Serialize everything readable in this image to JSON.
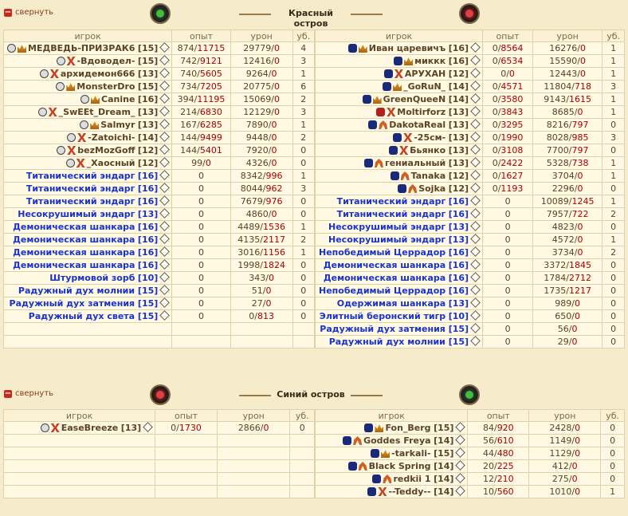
{
  "red": {
    "collapse_label": "свернуть",
    "title": "Красный остров",
    "headers": {
      "player": "игрок",
      "exp": "опыт",
      "dmg": "урон",
      "kills": "уб."
    },
    "left": [
      {
        "name": "МЕДВЕДЬ-ПРИЗРАК6",
        "lvl": "[15]",
        "exp_a": "874",
        "exp_b": "11715",
        "dmg_a": "29779",
        "dmg_b": "0",
        "kills": "4",
        "align": "g",
        "cls": "crown",
        "bot": false
      },
      {
        "name": "-Вдоводел-",
        "lvl": "[15]",
        "exp_a": "742",
        "exp_b": "9121",
        "dmg_a": "12416",
        "dmg_b": "0",
        "kills": "3",
        "align": "g",
        "cls": "x",
        "bot": false
      },
      {
        "name": "архидемон666",
        "lvl": "[13]",
        "exp_a": "740",
        "exp_b": "5605",
        "dmg_a": "9264",
        "dmg_b": "0",
        "kills": "1",
        "align": "g",
        "cls": "x",
        "bot": false
      },
      {
        "name": "MonsterDro",
        "lvl": "[15]",
        "exp_a": "734",
        "exp_b": "7205",
        "dmg_a": "20775",
        "dmg_b": "0",
        "kills": "6",
        "align": "g",
        "cls": "crown",
        "bot": false
      },
      {
        "name": "Canine",
        "lvl": "[16]",
        "exp_a": "394",
        "exp_b": "11195",
        "dmg_a": "15069",
        "dmg_b": "0",
        "kills": "2",
        "align": "g",
        "cls": "crown",
        "bot": false
      },
      {
        "name": "_SwEEt_Dream_",
        "lvl": "[13]",
        "exp_a": "214",
        "exp_b": "6830",
        "dmg_a": "12129",
        "dmg_b": "0",
        "kills": "3",
        "align": "g",
        "cls": "x",
        "bot": false
      },
      {
        "name": "Salmyr",
        "lvl": "[13]",
        "exp_a": "167",
        "exp_b": "6285",
        "dmg_a": "7890",
        "dmg_b": "0",
        "kills": "1",
        "align": "g",
        "cls": "crown",
        "bot": false
      },
      {
        "name": "-Zatoichi-",
        "lvl": "[14]",
        "exp_a": "144",
        "exp_b": "9499",
        "dmg_a": "9448",
        "dmg_b": "0",
        "kills": "2",
        "align": "g",
        "cls": "x",
        "bot": false
      },
      {
        "name": "bezMozGoff",
        "lvl": "[12]",
        "exp_a": "144",
        "exp_b": "5401",
        "dmg_a": "7920",
        "dmg_b": "0",
        "kills": "0",
        "align": "g",
        "cls": "x",
        "bot": false
      },
      {
        "name": "_Хаосный",
        "lvl": "[12]",
        "exp_a": "99",
        "exp_b": "0",
        "dmg_a": "4326",
        "dmg_b": "0",
        "kills": "0",
        "align": "g",
        "cls": "x",
        "bot": false
      },
      {
        "name": "Титанический эндарг",
        "lvl": "[16]",
        "exp_a": "0",
        "exp_b": "",
        "dmg_a": "8342",
        "dmg_b": "996",
        "kills": "1",
        "bot": true
      },
      {
        "name": "Титанический эндарг",
        "lvl": "[16]",
        "exp_a": "0",
        "exp_b": "",
        "dmg_a": "8044",
        "dmg_b": "962",
        "kills": "3",
        "bot": true
      },
      {
        "name": "Титанический эндарг",
        "lvl": "[16]",
        "exp_a": "0",
        "exp_b": "",
        "dmg_a": "7679",
        "dmg_b": "976",
        "kills": "0",
        "bot": true
      },
      {
        "name": "Несокрушимый эндарг",
        "lvl": "[13]",
        "exp_a": "0",
        "exp_b": "",
        "dmg_a": "4860",
        "dmg_b": "0",
        "kills": "0",
        "bot": true
      },
      {
        "name": "Демоническая шанкара",
        "lvl": "[16]",
        "exp_a": "0",
        "exp_b": "",
        "dmg_a": "4489",
        "dmg_b": "1536",
        "kills": "1",
        "bot": true
      },
      {
        "name": "Демоническая шанкара",
        "lvl": "[16]",
        "exp_a": "0",
        "exp_b": "",
        "dmg_a": "4135",
        "dmg_b": "2117",
        "kills": "2",
        "bot": true
      },
      {
        "name": "Демоническая шанкара",
        "lvl": "[16]",
        "exp_a": "0",
        "exp_b": "",
        "dmg_a": "3016",
        "dmg_b": "1156",
        "kills": "1",
        "bot": true
      },
      {
        "name": "Демоническая шанкара",
        "lvl": "[16]",
        "exp_a": "0",
        "exp_b": "",
        "dmg_a": "1998",
        "dmg_b": "1824",
        "kills": "0",
        "bot": true
      },
      {
        "name": "Штурмовой зорб",
        "lvl": "[10]",
        "exp_a": "0",
        "exp_b": "",
        "dmg_a": "343",
        "dmg_b": "0",
        "kills": "0",
        "bot": true
      },
      {
        "name": "Радужный дух молнии ",
        "lvl": "[15]",
        "exp_a": "0",
        "exp_b": "",
        "dmg_a": "51",
        "dmg_b": "0",
        "kills": "0",
        "bot": true
      },
      {
        "name": "Радужный дух затмения ",
        "lvl": "[15]",
        "exp_a": "0",
        "exp_b": "",
        "dmg_a": "27",
        "dmg_b": "0",
        "kills": "0",
        "bot": true
      },
      {
        "name": "Радужный дух света ",
        "lvl": "[15]",
        "exp_a": "0",
        "exp_b": "",
        "dmg_a": "0",
        "dmg_b": "813",
        "kills": "0",
        "bot": true
      }
    ],
    "right": [
      {
        "name": "Иван царевичъ",
        "lvl": "[16]",
        "exp_a": "0",
        "exp_b": "8564",
        "dmg_a": "16276",
        "dmg_b": "0",
        "kills": "1",
        "align": "b",
        "cls": "crown",
        "bot": false
      },
      {
        "name": "миккк",
        "lvl": "[16]",
        "exp_a": "0",
        "exp_b": "6534",
        "dmg_a": "15590",
        "dmg_b": "0",
        "kills": "1",
        "align": "b",
        "cls": "crown",
        "bot": false
      },
      {
        "name": "АРУХАН",
        "lvl": "[12]",
        "exp_a": "0",
        "exp_b": "0",
        "dmg_a": "12443",
        "dmg_b": "0",
        "kills": "1",
        "align": "b",
        "cls": "x",
        "bot": false
      },
      {
        "name": "_GoRuN_",
        "lvl": "[14]",
        "exp_a": "0",
        "exp_b": "4571",
        "dmg_a": "11804",
        "dmg_b": "718",
        "kills": "3",
        "align": "b",
        "cls": "crown",
        "bot": false
      },
      {
        "name": "GreenQueeN",
        "lvl": "[14]",
        "exp_a": "0",
        "exp_b": "3580",
        "dmg_a": "9143",
        "dmg_b": "1615",
        "kills": "1",
        "align": "b",
        "cls": "crown",
        "bot": false
      },
      {
        "name": "Moltirforz",
        "lvl": "[13]",
        "exp_a": "0",
        "exp_b": "3843",
        "dmg_a": "8685",
        "dmg_b": "0",
        "kills": "1",
        "align": "r",
        "cls": "x",
        "bot": false
      },
      {
        "name": "DakotaReal",
        "lvl": "[13]",
        "exp_a": "0",
        "exp_b": "3295",
        "dmg_a": "8216",
        "dmg_b": "797",
        "kills": "0",
        "align": "b",
        "cls": "arc",
        "bot": false
      },
      {
        "name": "-25см-",
        "lvl": "[13]",
        "exp_a": "0",
        "exp_b": "1990",
        "dmg_a": "8028",
        "dmg_b": "985",
        "kills": "3",
        "align": "b",
        "cls": "x",
        "bot": false
      },
      {
        "name": "Бьянко",
        "lvl": "[13]",
        "exp_a": "0",
        "exp_b": "3108",
        "dmg_a": "7700",
        "dmg_b": "797",
        "kills": "0",
        "align": "b",
        "cls": "x",
        "bot": false
      },
      {
        "name": "гениальный",
        "lvl": "[13]",
        "exp_a": "0",
        "exp_b": "2422",
        "dmg_a": "5328",
        "dmg_b": "738",
        "kills": "1",
        "align": "b",
        "cls": "arc",
        "bot": false
      },
      {
        "name": "Tanaka",
        "lvl": "[12]",
        "exp_a": "0",
        "exp_b": "1627",
        "dmg_a": "3704",
        "dmg_b": "0",
        "kills": "1",
        "align": "b",
        "cls": "arc",
        "bot": false
      },
      {
        "name": "Sojka",
        "lvl": "[12]",
        "exp_a": "0",
        "exp_b": "1193",
        "dmg_a": "2296",
        "dmg_b": "0",
        "kills": "0",
        "align": "b",
        "cls": "arc",
        "bot": false
      },
      {
        "name": "Титанический эндарг",
        "lvl": "[16]",
        "exp_a": "0",
        "exp_b": "",
        "dmg_a": "10089",
        "dmg_b": "1245",
        "kills": "1",
        "bot": true
      },
      {
        "name": "Титанический эндарг",
        "lvl": "[16]",
        "exp_a": "0",
        "exp_b": "",
        "dmg_a": "7957",
        "dmg_b": "722",
        "kills": "2",
        "bot": true
      },
      {
        "name": "Несокрушимый эндарг",
        "lvl": "[13]",
        "exp_a": "0",
        "exp_b": "",
        "dmg_a": "4823",
        "dmg_b": "0",
        "kills": "0",
        "bot": true
      },
      {
        "name": "Несокрушимый эндарг",
        "lvl": "[13]",
        "exp_a": "0",
        "exp_b": "",
        "dmg_a": "4572",
        "dmg_b": "0",
        "kills": "1",
        "bot": true
      },
      {
        "name": "Непобедимый Церрадор",
        "lvl": "[16]",
        "exp_a": "0",
        "exp_b": "",
        "dmg_a": "3734",
        "dmg_b": "0",
        "kills": "2",
        "bot": true
      },
      {
        "name": "Демоническая шанкара",
        "lvl": "[16]",
        "exp_a": "0",
        "exp_b": "",
        "dmg_a": "3372",
        "dmg_b": "1845",
        "kills": "0",
        "bot": true
      },
      {
        "name": "Демоническая шанкара",
        "lvl": "[16]",
        "exp_a": "0",
        "exp_b": "",
        "dmg_a": "1784",
        "dmg_b": "2712",
        "kills": "0",
        "bot": true
      },
      {
        "name": "Непобедимый Церрадор",
        "lvl": "[16]",
        "exp_a": "0",
        "exp_b": "",
        "dmg_a": "1735",
        "dmg_b": "1217",
        "kills": "0",
        "bot": true
      },
      {
        "name": "Одержимая шанкара",
        "lvl": "[13]",
        "exp_a": "0",
        "exp_b": "",
        "dmg_a": "989",
        "dmg_b": "0",
        "kills": "0",
        "bot": true
      },
      {
        "name": "Элитный беронский тигр",
        "lvl": "[10]",
        "exp_a": "0",
        "exp_b": "",
        "dmg_a": "650",
        "dmg_b": "0",
        "kills": "0",
        "bot": true
      },
      {
        "name": "Радужный дух затмения ",
        "lvl": "[15]",
        "exp_a": "0",
        "exp_b": "",
        "dmg_a": "56",
        "dmg_b": "0",
        "kills": "0",
        "bot": true
      },
      {
        "name": "Радужный дух молнии ",
        "lvl": "[15]",
        "exp_a": "0",
        "exp_b": "",
        "dmg_a": "29",
        "dmg_b": "0",
        "kills": "0",
        "bot": true
      }
    ]
  },
  "blue": {
    "collapse_label": "свернуть",
    "title": "Синий остров",
    "headers": {
      "player": "игрок",
      "exp": "опыт",
      "dmg": "урон",
      "kills": "уб."
    },
    "left": [
      {
        "name": "EaseBreeze",
        "lvl": "[13]",
        "exp_a": "0",
        "exp_b": "1730",
        "dmg_a": "2866",
        "dmg_b": "0",
        "kills": "0",
        "align": "g",
        "cls": "x",
        "bot": false
      }
    ],
    "right": [
      {
        "name": "Fon_Berg",
        "lvl": "[15]",
        "exp_a": "84",
        "exp_b": "920",
        "dmg_a": "2428",
        "dmg_b": "0",
        "kills": "0",
        "align": "b",
        "cls": "crown",
        "bot": false
      },
      {
        "name": "Goddes Freya",
        "lvl": "[14]",
        "exp_a": "56",
        "exp_b": "610",
        "dmg_a": "1149",
        "dmg_b": "0",
        "kills": "0",
        "align": "b",
        "cls": "arc",
        "bot": false
      },
      {
        "name": "-tarkali-",
        "lvl": "[15]",
        "exp_a": "44",
        "exp_b": "480",
        "dmg_a": "1129",
        "dmg_b": "0",
        "kills": "0",
        "align": "b",
        "cls": "crown",
        "bot": false
      },
      {
        "name": "Black Spring",
        "lvl": "[14]",
        "exp_a": "20",
        "exp_b": "225",
        "dmg_a": "412",
        "dmg_b": "0",
        "kills": "0",
        "align": "b",
        "cls": "arc",
        "bot": false
      },
      {
        "name": "redkii 1",
        "lvl": "[14]",
        "exp_a": "12",
        "exp_b": "210",
        "dmg_a": "275",
        "dmg_b": "0",
        "kills": "0",
        "align": "b",
        "cls": "arc",
        "bot": false
      },
      {
        "name": "--Teddy--",
        "lvl": "[14]",
        "exp_a": "10",
        "exp_b": "560",
        "dmg_a": "1010",
        "dmg_b": "0",
        "kills": "1",
        "align": "b",
        "cls": "x",
        "bot": false
      }
    ]
  }
}
